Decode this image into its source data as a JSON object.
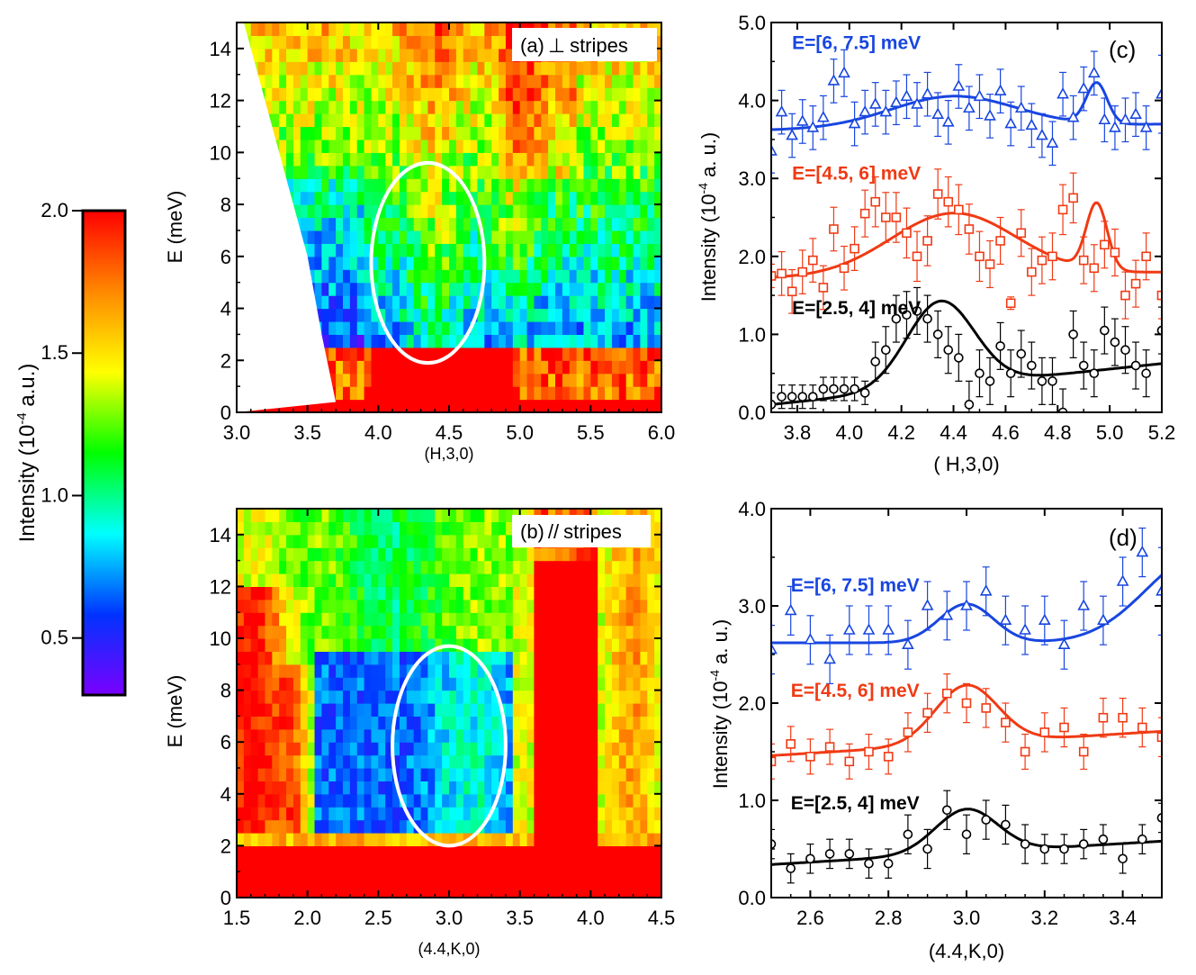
{
  "colors": {
    "blue": "#1846e0",
    "red": "#f03a14",
    "black": "#000000",
    "ellipse": "#ffffff"
  },
  "colorbar": {
    "label_main": "Intensity (10",
    "label_sup": "-4",
    "label_tail": " a.u.)",
    "range": [
      0.3,
      2.0
    ],
    "ticks": [
      0.5,
      1.0,
      1.5,
      2.0
    ],
    "tick_labels": [
      "0.5",
      "1.0",
      "1.5",
      "2.0"
    ],
    "stops": [
      "#7a00ff",
      "#0033ff",
      "#00ffff",
      "#00ff00",
      "#ffff00",
      "#ff8800",
      "#ff0000"
    ]
  },
  "chart_data": [
    {
      "id": "a",
      "type": "heatmap",
      "panel_label": "(a)",
      "panel_symbol": "⊥",
      "panel_text": "stripes",
      "xlabel": "(H,3,0)",
      "ylabel": "E (meV)",
      "xlim": [
        3.0,
        6.0
      ],
      "ylim": [
        0,
        15
      ],
      "xticks": [
        3.0,
        3.5,
        4.0,
        4.5,
        5.0,
        5.5,
        6.0
      ],
      "xtick_labels": [
        "3.0",
        "3.5",
        "4.0",
        "4.5",
        "5.0",
        "5.5",
        "6.0"
      ],
      "yticks": [
        0,
        2,
        4,
        6,
        8,
        10,
        12,
        14
      ],
      "ytick_labels": [
        "0",
        "2",
        "4",
        "6",
        "8",
        "10",
        "12",
        "14"
      ],
      "ellipse": {
        "center": [
          4.35,
          5.75
        ],
        "half_width": 0.4,
        "half_height": 3.85
      },
      "coverage_edge": [
        [
          3.05,
          15
        ],
        [
          3.2,
          12
        ],
        [
          3.35,
          9
        ],
        [
          3.5,
          6
        ],
        [
          3.6,
          3
        ],
        [
          3.7,
          0.4
        ]
      ]
    },
    {
      "id": "b",
      "type": "heatmap",
      "panel_label": "(b)",
      "panel_symbol": "//",
      "panel_text": "stripes",
      "xlabel": "(4.4,K,0)",
      "ylabel": "E (meV)",
      "xlim": [
        1.5,
        4.5
      ],
      "ylim": [
        0,
        15
      ],
      "xticks": [
        1.5,
        2.0,
        2.5,
        3.0,
        3.5,
        4.0,
        4.5
      ],
      "xtick_labels": [
        "1.5",
        "2.0",
        "2.5",
        "3.0",
        "3.5",
        "4.0",
        "4.5"
      ],
      "yticks": [
        0,
        2,
        4,
        6,
        8,
        10,
        12,
        14
      ],
      "ytick_labels": [
        "0",
        "2",
        "4",
        "6",
        "8",
        "10",
        "12",
        "14"
      ],
      "ellipse": {
        "center": [
          3.0,
          5.85
        ],
        "half_width": 0.4,
        "half_height": 3.85
      }
    },
    {
      "id": "c",
      "type": "scatter",
      "panel_label": "(c)",
      "xlabel": "( H,3,0)",
      "ylabel_main": "Intensity (10",
      "ylabel_sup": "-4",
      "ylabel_tail": " a. u.)",
      "xlim": [
        3.7,
        5.2
      ],
      "ylim": [
        0.0,
        5.0
      ],
      "xticks": [
        3.8,
        4.0,
        4.2,
        4.4,
        4.6,
        4.8,
        5.0,
        5.2
      ],
      "xtick_labels": [
        "3.8",
        "4.0",
        "4.2",
        "4.4",
        "4.6",
        "4.8",
        "5.0",
        "5.2"
      ],
      "yticks": [
        0.0,
        1.0,
        2.0,
        3.0,
        4.0,
        5.0
      ],
      "ytick_labels": [
        "0.0",
        "1.0",
        "2.0",
        "3.0",
        "4.0",
        "5.0"
      ],
      "series": [
        {
          "name": "E=[6, 7.5] meV",
          "color": "#1846e0",
          "marker": "triangle",
          "label_at": [
            3.78,
            4.75
          ],
          "x": [
            3.7,
            3.74,
            3.78,
            3.82,
            3.86,
            3.9,
            3.94,
            3.98,
            4.02,
            4.06,
            4.1,
            4.14,
            4.18,
            4.22,
            4.26,
            4.3,
            4.34,
            4.38,
            4.42,
            4.46,
            4.5,
            4.54,
            4.58,
            4.62,
            4.66,
            4.7,
            4.74,
            4.78,
            4.82,
            4.86,
            4.9,
            4.94,
            4.98,
            5.02,
            5.06,
            5.1,
            5.14,
            5.2
          ],
          "y": [
            3.35,
            3.85,
            3.55,
            3.73,
            3.65,
            3.78,
            4.25,
            4.35,
            3.7,
            3.85,
            3.95,
            3.85,
            3.97,
            4.05,
            3.95,
            4.08,
            3.82,
            3.72,
            4.18,
            3.9,
            4.05,
            3.8,
            4.12,
            3.7,
            3.9,
            3.68,
            3.55,
            3.45,
            4.08,
            3.78,
            4.15,
            4.35,
            3.75,
            3.65,
            3.75,
            3.82,
            3.65,
            4.08
          ],
          "err": [
            0.28,
            0.28,
            0.28,
            0.28,
            0.28,
            0.28,
            0.28,
            0.3,
            0.28,
            0.28,
            0.28,
            0.28,
            0.28,
            0.28,
            0.28,
            0.28,
            0.28,
            0.28,
            0.28,
            0.28,
            0.28,
            0.28,
            0.28,
            0.28,
            0.28,
            0.28,
            0.28,
            0.28,
            0.28,
            0.28,
            0.28,
            0.28,
            0.28,
            0.28,
            0.28,
            0.28,
            0.28,
            0.5
          ],
          "fit": {
            "base": 3.62,
            "slope": 0.05,
            "g1": [
              0.4,
              4.4,
              0.24
            ],
            "g2": [
              0.52,
              4.95,
              0.04
            ]
          }
        },
        {
          "name": "E=[4.5, 6] meV",
          "color": "#f03a14",
          "marker": "square",
          "label_at": [
            3.78,
            3.08
          ],
          "x": [
            3.7,
            3.74,
            3.78,
            3.82,
            3.86,
            3.9,
            3.94,
            3.98,
            4.02,
            4.06,
            4.1,
            4.14,
            4.18,
            4.22,
            4.26,
            4.3,
            4.34,
            4.38,
            4.42,
            4.46,
            4.5,
            4.54,
            4.58,
            4.62,
            4.66,
            4.7,
            4.74,
            4.78,
            4.82,
            4.86,
            4.9,
            4.94,
            4.98,
            5.02,
            5.06,
            5.1,
            5.14,
            5.2
          ],
          "y": [
            1.75,
            1.78,
            1.55,
            1.8,
            1.95,
            1.6,
            2.35,
            1.85,
            2.1,
            2.55,
            2.7,
            2.5,
            2.5,
            2.3,
            2.0,
            2.2,
            2.8,
            2.7,
            2.6,
            2.35,
            2.0,
            1.9,
            2.2,
            1.4,
            2.3,
            1.8,
            1.95,
            2.0,
            2.6,
            2.75,
            1.95,
            1.85,
            2.15,
            2.05,
            1.5,
            1.65,
            2.0,
            1.5
          ],
          "err": [
            0.15,
            0.28,
            0.28,
            0.28,
            0.28,
            0.28,
            0.28,
            0.28,
            0.28,
            0.3,
            0.32,
            0.32,
            0.32,
            0.32,
            0.32,
            0.32,
            0.32,
            0.32,
            0.32,
            0.32,
            0.32,
            0.3,
            0.3,
            0.08,
            0.3,
            0.3,
            0.3,
            0.3,
            0.32,
            0.32,
            0.3,
            0.3,
            0.3,
            0.3,
            0.3,
            0.3,
            0.3,
            0.3
          ],
          "fit": {
            "base": 1.72,
            "slope": 0.05,
            "g1": [
              0.8,
              4.4,
              0.24
            ],
            "g2": [
              0.85,
              4.95,
              0.04
            ]
          }
        },
        {
          "name": "E=[2.5, 4] meV",
          "color": "#000000",
          "marker": "circle",
          "label_at": [
            3.78,
            1.35
          ],
          "x": [
            3.7,
            3.74,
            3.78,
            3.82,
            3.86,
            3.9,
            3.94,
            3.98,
            4.02,
            4.06,
            4.1,
            4.14,
            4.18,
            4.22,
            4.26,
            4.3,
            4.34,
            4.38,
            4.42,
            4.46,
            4.5,
            4.54,
            4.58,
            4.62,
            4.66,
            4.7,
            4.74,
            4.78,
            4.82,
            4.86,
            4.9,
            4.94,
            4.98,
            5.02,
            5.06,
            5.1,
            5.14,
            5.2
          ],
          "y": [
            0.1,
            0.2,
            0.2,
            0.2,
            0.2,
            0.3,
            0.3,
            0.3,
            0.3,
            0.25,
            0.65,
            0.8,
            1.2,
            1.25,
            1.3,
            1.2,
            1.0,
            0.8,
            0.7,
            0.1,
            0.5,
            0.4,
            0.85,
            0.5,
            0.75,
            0.6,
            0.4,
            0.4,
            0.0,
            1.0,
            0.6,
            0.5,
            1.05,
            0.9,
            0.8,
            0.6,
            0.5,
            1.05
          ],
          "err": [
            0.15,
            0.15,
            0.15,
            0.15,
            0.15,
            0.15,
            0.15,
            0.15,
            0.15,
            0.15,
            0.25,
            0.3,
            0.3,
            0.3,
            0.3,
            0.3,
            0.3,
            0.3,
            0.3,
            0.3,
            0.3,
            0.3,
            0.3,
            0.3,
            0.3,
            0.3,
            0.3,
            0.3,
            0.3,
            0.3,
            0.3,
            0.3,
            0.3,
            0.3,
            0.3,
            0.3,
            0.3,
            0.3
          ],
          "fit": {
            "base": 0.1,
            "slope": 0.35,
            "g1": [
              1.1,
              4.35,
              0.13
            ],
            "g2": [
              0.0,
              4.95,
              0.04
            ]
          }
        }
      ]
    },
    {
      "id": "d",
      "type": "scatter",
      "panel_label": "(d)",
      "xlabel": "(4.4,K,0)",
      "ylabel_main": "Intensity (10",
      "ylabel_sup": "-4",
      "ylabel_tail": "  a. u.)",
      "xlim": [
        2.5,
        3.5
      ],
      "ylim": [
        0.0,
        4.0
      ],
      "xticks": [
        2.6,
        2.8,
        3.0,
        3.2,
        3.4
      ],
      "xtick_labels": [
        "2.6",
        "2.8",
        "3.0",
        "3.2",
        "3.4"
      ],
      "yticks": [
        0.0,
        1.0,
        2.0,
        3.0,
        4.0
      ],
      "ytick_labels": [
        "0.0",
        "1.0",
        "2.0",
        "3.0",
        "4.0"
      ],
      "series": [
        {
          "name": "E=[6, 7.5] meV",
          "color": "#1846e0",
          "marker": "triangle",
          "label_at": [
            2.55,
            3.22
          ],
          "x": [
            2.5,
            2.55,
            2.6,
            2.65,
            2.7,
            2.75,
            2.8,
            2.85,
            2.9,
            2.95,
            3.0,
            3.05,
            3.1,
            3.15,
            3.2,
            3.25,
            3.3,
            3.35,
            3.4,
            3.45,
            3.5
          ],
          "y": [
            2.55,
            2.95,
            2.65,
            2.45,
            2.75,
            2.75,
            2.75,
            2.6,
            3.0,
            2.9,
            3.0,
            3.15,
            2.85,
            2.75,
            2.85,
            2.6,
            3.0,
            2.85,
            3.25,
            3.55,
            3.15
          ],
          "err": [
            0.25,
            0.25,
            0.25,
            0.25,
            0.25,
            0.25,
            0.25,
            0.25,
            0.25,
            0.25,
            0.25,
            0.25,
            0.25,
            0.25,
            0.25,
            0.25,
            0.25,
            0.25,
            0.25,
            0.25,
            0.45
          ],
          "fit": {
            "base": 2.62,
            "slope": 0.0,
            "g1": [
              0.4,
              3.0,
              0.07
            ],
            "g2": [
              0.9,
              3.6,
              0.14
            ]
          }
        },
        {
          "name": "E=[4.5, 6] meV",
          "color": "#f03a14",
          "marker": "square",
          "label_at": [
            2.55,
            2.14
          ],
          "x": [
            2.5,
            2.55,
            2.6,
            2.65,
            2.7,
            2.75,
            2.8,
            2.85,
            2.9,
            2.95,
            3.0,
            3.05,
            3.1,
            3.15,
            3.2,
            3.25,
            3.3,
            3.35,
            3.4,
            3.45,
            3.5
          ],
          "y": [
            1.4,
            1.58,
            1.45,
            1.55,
            1.4,
            1.5,
            1.45,
            1.7,
            1.9,
            2.1,
            2.0,
            1.95,
            1.8,
            1.5,
            1.7,
            1.75,
            1.5,
            1.85,
            1.85,
            1.75,
            1.65
          ],
          "err": [
            0.18,
            0.18,
            0.18,
            0.18,
            0.18,
            0.18,
            0.18,
            0.2,
            0.2,
            0.2,
            0.2,
            0.2,
            0.2,
            0.18,
            0.2,
            0.2,
            0.18,
            0.2,
            0.2,
            0.2,
            0.2
          ],
          "fit": {
            "base": 1.46,
            "slope": 0.25,
            "g1": [
              0.6,
              3.0,
              0.08
            ],
            "g2": [
              0.0,
              3.6,
              0.1
            ]
          }
        },
        {
          "name": "E=[2.5, 4] meV",
          "color": "#000000",
          "marker": "circle",
          "label_at": [
            2.55,
            0.98
          ],
          "x": [
            2.5,
            2.55,
            2.6,
            2.65,
            2.7,
            2.75,
            2.8,
            2.85,
            2.9,
            2.95,
            3.0,
            3.05,
            3.1,
            3.15,
            3.2,
            3.25,
            3.3,
            3.35,
            3.4,
            3.45,
            3.5
          ],
          "y": [
            0.55,
            0.3,
            0.4,
            0.45,
            0.45,
            0.35,
            0.35,
            0.65,
            0.5,
            0.9,
            0.65,
            0.8,
            0.75,
            0.55,
            0.5,
            0.5,
            0.55,
            0.6,
            0.4,
            0.6,
            0.82
          ],
          "err": [
            0.15,
            0.15,
            0.15,
            0.15,
            0.15,
            0.15,
            0.15,
            0.2,
            0.2,
            0.2,
            0.2,
            0.2,
            0.2,
            0.2,
            0.15,
            0.15,
            0.15,
            0.15,
            0.15,
            0.15,
            0.15
          ],
          "fit": {
            "base": 0.34,
            "slope": 0.24,
            "g1": [
              0.45,
              3.0,
              0.08
            ],
            "g2": [
              0.0,
              3.6,
              0.1
            ]
          }
        }
      ]
    }
  ]
}
